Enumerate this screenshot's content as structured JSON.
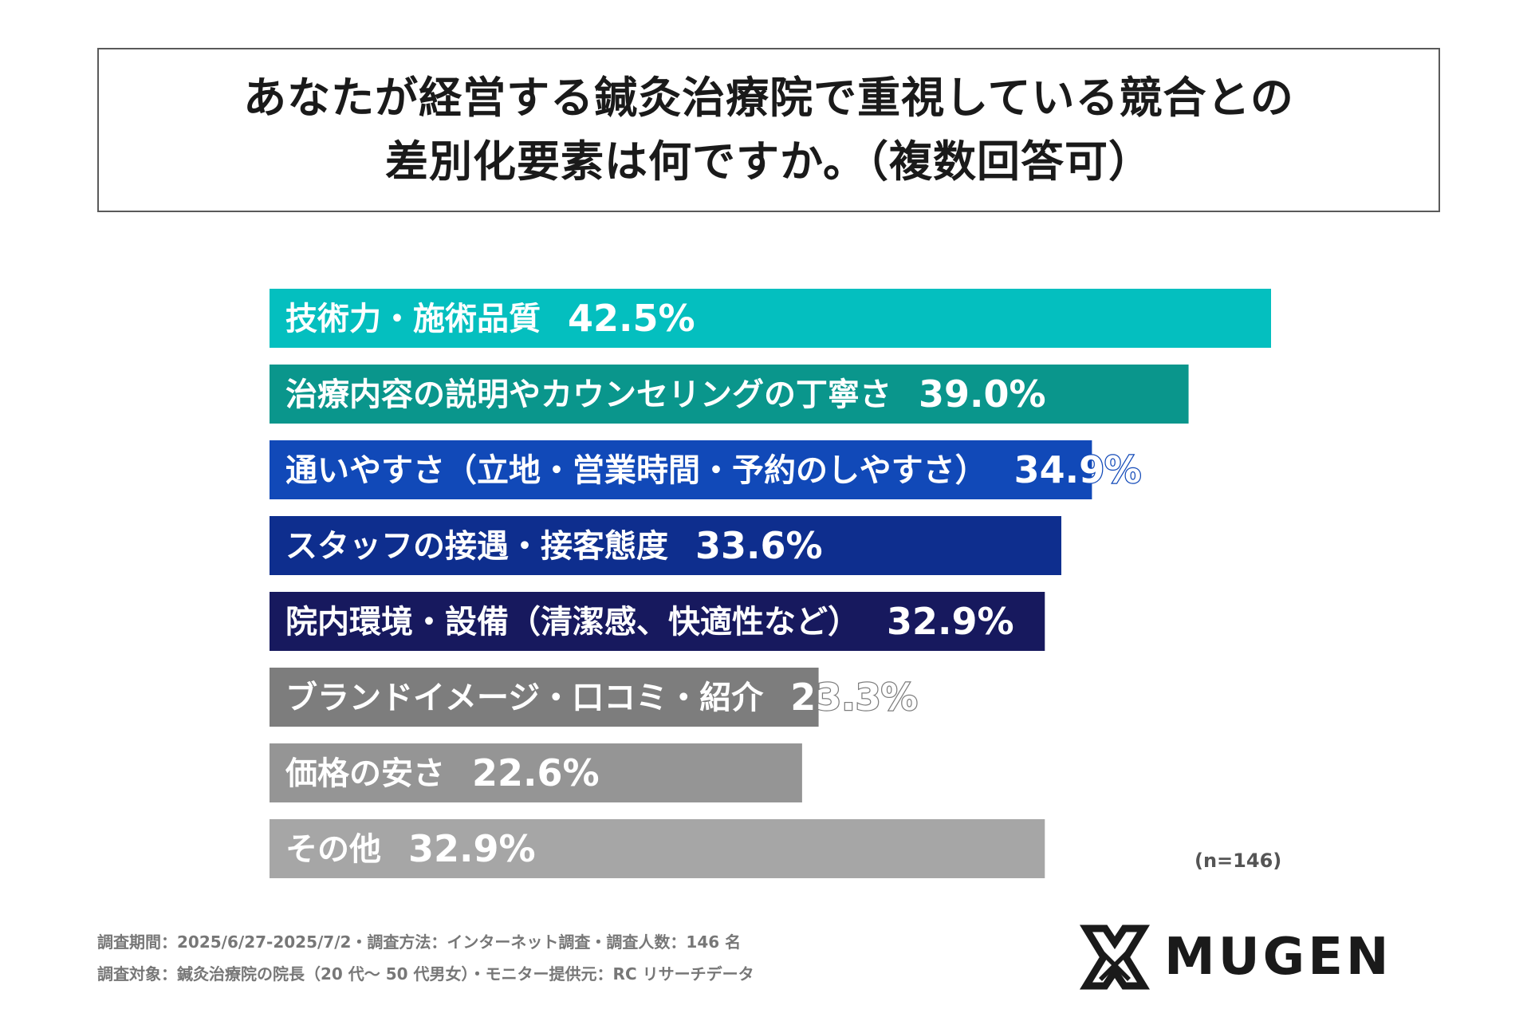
{
  "title": {
    "line1": "あなたが経営する鍼灸治療院で重視している競合との",
    "line2": "差別化要素は何ですか。（複数回答可）"
  },
  "chart_data": {
    "type": "bar",
    "orientation": "horizontal",
    "categories": [
      "技術力・施術品質",
      "治療内容の説明やカウンセリングの丁寧さ",
      "通いやすさ（立地・営業時間・予約のしやすさ）",
      "スタッフの接遇・接客態度",
      "院内環境・設備（清潔感、快適性など）",
      "ブランドイメージ・口コミ・紹介",
      "価格の安さ",
      "その他"
    ],
    "values": [
      42.5,
      39.0,
      34.9,
      33.6,
      32.9,
      23.3,
      22.6,
      32.9
    ],
    "value_labels": [
      "42.5%",
      "39.0%",
      "34.9%",
      "33.6%",
      "32.9%",
      "23.3%",
      "22.6%",
      "32.9%"
    ],
    "colors": [
      "#04bfbf",
      "#0a968c",
      "#1149b8",
      "#0e2e8e",
      "#17195e",
      "#7d7d7d",
      "#959595",
      "#a6a6a6"
    ],
    "xlim": [
      0,
      42.5
    ],
    "grid": false,
    "legend": "none"
  },
  "sample_size": "(n=146)",
  "footnotes": {
    "line1": "調査期間：2025/6/27-2025/7/2・調査方法：インターネット調査・調査人数：146 名",
    "line2": "調査対象：鍼灸治療院の院長（20 代～ 50 代男女）・モニター提供元：RC リサーチデータ"
  },
  "logo": {
    "text": "MUGEN",
    "icon": "mugen-x-icon"
  }
}
